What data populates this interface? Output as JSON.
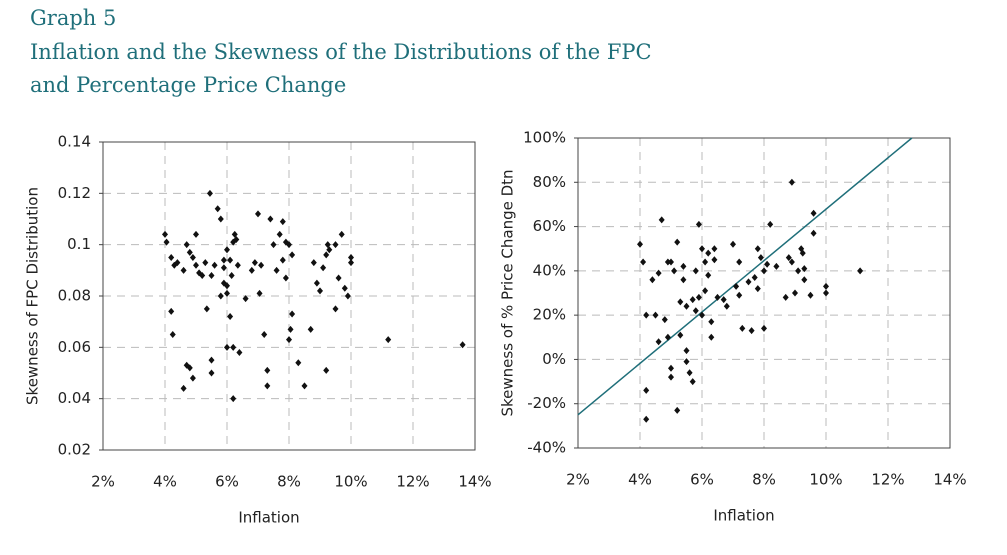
{
  "header": {
    "label": "Graph 5",
    "title": [
      "Inflation and the Skewness of the Distributions of the FPC",
      "and Percentage Price Change"
    ]
  },
  "chart_data": [
    {
      "type": "scatter",
      "ylabel": "Skewness of FPC Distribution",
      "xlabel": "Inflation",
      "color": "#111111",
      "grid": true,
      "xlim": [
        2,
        14
      ],
      "xticks": [
        {
          "value": 2,
          "label": "2%"
        },
        {
          "value": 4,
          "label": "4%"
        },
        {
          "value": 6,
          "label": "6%"
        },
        {
          "value": 8,
          "label": "8%"
        },
        {
          "value": 10,
          "label": "10%"
        },
        {
          "value": 12,
          "label": "12%"
        },
        {
          "value": 14,
          "label": "14%"
        }
      ],
      "ylim": [
        0.02,
        0.14
      ],
      "yticks": [
        0.02,
        0.04,
        0.06,
        0.08,
        0.1,
        0.12,
        0.14
      ],
      "x": [
        4.0,
        4.05,
        4.2,
        4.3,
        4.4,
        4.2,
        4.25,
        4.6,
        4.7,
        4.8,
        4.9,
        5.0,
        5.0,
        5.1,
        5.2,
        5.3,
        5.35,
        5.45,
        5.5,
        5.6,
        5.7,
        5.8,
        5.9,
        5.9,
        6.0,
        6.0,
        6.1,
        6.15,
        6.2,
        6.25,
        6.3,
        6.35,
        6.4,
        6.2,
        6.1,
        6.0,
        6.2,
        6.6,
        6.8,
        6.9,
        7.0,
        7.05,
        7.2,
        7.3,
        7.3,
        7.4,
        7.5,
        7.6,
        7.7,
        7.8,
        7.8,
        7.9,
        7.9,
        8.0,
        8.0,
        8.05,
        8.1,
        8.3,
        8.5,
        8.7,
        8.8,
        8.9,
        9.0,
        9.1,
        9.2,
        9.2,
        9.3,
        9.5,
        9.7,
        9.6,
        9.8,
        9.9,
        10.0,
        10.0,
        11.2,
        13.6,
        4.7,
        4.8,
        4.6,
        4.9,
        5.5,
        5.5,
        5.8,
        6.0,
        5.9,
        7.1,
        9.25,
        9.5,
        8.1
      ],
      "values": [
        0.104,
        0.101,
        0.095,
        0.092,
        0.093,
        0.074,
        0.065,
        0.09,
        0.1,
        0.097,
        0.095,
        0.104,
        0.092,
        0.089,
        0.088,
        0.093,
        0.075,
        0.12,
        0.088,
        0.092,
        0.114,
        0.11,
        0.094,
        0.085,
        0.081,
        0.098,
        0.094,
        0.088,
        0.101,
        0.104,
        0.102,
        0.092,
        0.058,
        0.06,
        0.072,
        0.06,
        0.04,
        0.079,
        0.09,
        0.093,
        0.112,
        0.081,
        0.065,
        0.051,
        0.045,
        0.11,
        0.1,
        0.09,
        0.104,
        0.109,
        0.094,
        0.087,
        0.101,
        0.1,
        0.063,
        0.067,
        0.073,
        0.054,
        0.045,
        0.067,
        0.093,
        0.085,
        0.082,
        0.091,
        0.096,
        0.051,
        0.098,
        0.075,
        0.104,
        0.087,
        0.083,
        0.08,
        0.093,
        0.095,
        0.063,
        0.061,
        0.053,
        0.052,
        0.044,
        0.048,
        0.055,
        0.05,
        0.08,
        0.084,
        0.091,
        0.092,
        0.1,
        0.1,
        0.096
      ]
    },
    {
      "type": "scatter",
      "ylabel": "Skewness of % Price Change Dtn",
      "xlabel": "Inflation",
      "color": "#111111",
      "grid": true,
      "xlim": [
        2,
        14
      ],
      "xticks": [
        {
          "value": 2,
          "label": "2%"
        },
        {
          "value": 4,
          "label": "4%"
        },
        {
          "value": 6,
          "label": "6%"
        },
        {
          "value": 8,
          "label": "8%"
        },
        {
          "value": 10,
          "label": "10%"
        },
        {
          "value": 12,
          "label": "12%"
        },
        {
          "value": 14,
          "label": "14%"
        }
      ],
      "ylim": [
        -40,
        100
      ],
      "yticks": [
        {
          "value": -40,
          "label": "-40%"
        },
        {
          "value": -20,
          "label": "-20%"
        },
        {
          "value": 0,
          "label": "0%"
        },
        {
          "value": 20,
          "label": "20%"
        },
        {
          "value": 40,
          "label": "40%"
        },
        {
          "value": 60,
          "label": "60%"
        },
        {
          "value": 80,
          "label": "80%"
        },
        {
          "value": 100,
          "label": "100%"
        }
      ],
      "x": [
        4.0,
        4.1,
        4.2,
        4.2,
        4.2,
        4.4,
        4.5,
        4.6,
        4.7,
        4.6,
        4.8,
        4.9,
        5.0,
        5.0,
        5.0,
        5.1,
        5.2,
        5.2,
        5.3,
        5.3,
        5.4,
        5.5,
        5.5,
        5.6,
        5.7,
        5.8,
        5.8,
        5.9,
        5.9,
        6.0,
        6.0,
        6.1,
        6.2,
        6.3,
        6.3,
        6.4,
        6.5,
        6.7,
        6.8,
        7.0,
        7.1,
        7.2,
        7.2,
        7.3,
        7.5,
        7.6,
        7.7,
        7.8,
        7.8,
        7.9,
        8.0,
        8.0,
        8.2,
        8.4,
        8.7,
        8.8,
        8.9,
        8.9,
        9.0,
        9.1,
        9.2,
        9.3,
        9.3,
        9.5,
        9.6,
        9.6,
        10.0,
        10.0,
        11.1,
        5.5,
        5.7,
        6.1,
        5.4,
        4.9,
        8.1,
        6.2,
        6.4,
        9.25
      ],
      "values": [
        52,
        44,
        20,
        -14,
        -27,
        36,
        20,
        8,
        63,
        39,
        18,
        10,
        -4,
        -8,
        44,
        40,
        53,
        -23,
        26,
        11,
        36,
        4,
        -1,
        -6,
        -10,
        40,
        22,
        61,
        28,
        50,
        20,
        44,
        48,
        17,
        10,
        50,
        28,
        27,
        24,
        52,
        33,
        44,
        29,
        14,
        35,
        13,
        37,
        32,
        50,
        46,
        40,
        14,
        61,
        42,
        28,
        46,
        80,
        44,
        30,
        40,
        50,
        41,
        36,
        29,
        57,
        66,
        33,
        30,
        40,
        24,
        27,
        31,
        42,
        44,
        43,
        38,
        45,
        48
      ],
      "trend": {
        "x": [
          2,
          12.77
        ],
        "values": [
          -25,
          100
        ],
        "color": "#1f6f7a"
      }
    }
  ]
}
